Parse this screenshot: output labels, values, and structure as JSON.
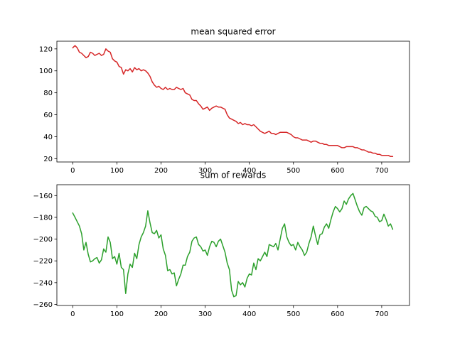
{
  "chart_data": [
    {
      "type": "line",
      "title": "mean squared error",
      "xlabel": "",
      "ylabel": "",
      "xlim": [
        -36,
        763
      ],
      "ylim": [
        17,
        127
      ],
      "xticks": [
        0,
        100,
        200,
        300,
        400,
        500,
        600,
        700
      ],
      "yticks": [
        20,
        40,
        60,
        80,
        100,
        120
      ],
      "grid": false,
      "color": "#d62728",
      "series": [
        {
          "x": [
            0,
            5,
            10,
            15,
            20,
            25,
            30,
            35,
            40,
            45,
            50,
            55,
            60,
            65,
            70,
            75,
            80,
            85,
            90,
            95,
            100,
            105,
            110,
            115,
            120,
            125,
            130,
            135,
            140,
            145,
            150,
            155,
            160,
            165,
            170,
            175,
            180,
            185,
            190,
            195,
            200,
            205,
            210,
            215,
            220,
            225,
            230,
            235,
            240,
            245,
            250,
            255,
            260,
            265,
            270,
            275,
            280,
            285,
            290,
            295,
            300,
            305,
            310,
            315,
            320,
            325,
            330,
            335,
            340,
            345,
            350,
            355,
            360,
            365,
            370,
            375,
            380,
            385,
            390,
            395,
            400,
            405,
            410,
            415,
            420,
            425,
            430,
            435,
            440,
            445,
            450,
            455,
            460,
            465,
            470,
            475,
            480,
            485,
            490,
            495,
            500,
            505,
            510,
            515,
            520,
            525,
            530,
            535,
            540,
            545,
            550,
            555,
            560,
            565,
            570,
            575,
            580,
            585,
            590,
            595,
            600,
            605,
            610,
            615,
            620,
            625,
            630,
            635,
            640,
            645,
            650,
            655,
            660,
            665,
            670,
            675,
            680,
            685,
            690,
            695,
            700,
            705,
            710,
            715,
            720,
            725
          ],
          "y": [
            121,
            123,
            121,
            117,
            116,
            114,
            112,
            113,
            117,
            116,
            114,
            115,
            116,
            114,
            115,
            120,
            118,
            117,
            111,
            109,
            108,
            104,
            103,
            97,
            101,
            100,
            102,
            99,
            103,
            101,
            102,
            100,
            101,
            100,
            98,
            95,
            90,
            87,
            85,
            86,
            84,
            83,
            85,
            83,
            84,
            83,
            83,
            85,
            84,
            83,
            84,
            80,
            79,
            78,
            74,
            73,
            73,
            70,
            68,
            65,
            66,
            67,
            64,
            66,
            67,
            68,
            67,
            67,
            66,
            65,
            60,
            57,
            56,
            55,
            54,
            52,
            53,
            51,
            52,
            51,
            51,
            50,
            51,
            49,
            47,
            45,
            44,
            43,
            44,
            45,
            43,
            43,
            42,
            43,
            44,
            44,
            44,
            44,
            43,
            42,
            40,
            39,
            39,
            38,
            37,
            37,
            37,
            36,
            35,
            36,
            36,
            35,
            34,
            34,
            33,
            33,
            32,
            32,
            32,
            32,
            32,
            31,
            30,
            30,
            31,
            31,
            31,
            31,
            30,
            30,
            29,
            28,
            28,
            27,
            26,
            26,
            25,
            25,
            24,
            24,
            23,
            23,
            23,
            23,
            22,
            22
          ]
        }
      ]
    },
    {
      "type": "line",
      "title": "sum of rewards",
      "xlabel": "",
      "ylabel": "",
      "xlim": [
        -36,
        763
      ],
      "ylim": [
        -261,
        -150
      ],
      "xticks": [
        0,
        100,
        200,
        300,
        400,
        500,
        600,
        700
      ],
      "yticks": [
        -260,
        -240,
        -220,
        -200,
        -180,
        -160
      ],
      "grid": false,
      "color": "#2ca02c",
      "series": [
        {
          "x": [
            0,
            5,
            10,
            15,
            20,
            25,
            30,
            35,
            40,
            45,
            50,
            55,
            60,
            65,
            70,
            75,
            80,
            85,
            90,
            95,
            100,
            105,
            110,
            115,
            120,
            125,
            130,
            135,
            140,
            145,
            150,
            155,
            160,
            165,
            170,
            175,
            180,
            185,
            190,
            195,
            200,
            205,
            210,
            215,
            220,
            225,
            230,
            235,
            240,
            245,
            250,
            255,
            260,
            265,
            270,
            275,
            280,
            285,
            290,
            295,
            300,
            305,
            310,
            315,
            320,
            325,
            330,
            335,
            340,
            345,
            350,
            355,
            360,
            365,
            370,
            375,
            380,
            385,
            390,
            395,
            400,
            405,
            410,
            415,
            420,
            425,
            430,
            435,
            440,
            445,
            450,
            455,
            460,
            465,
            470,
            475,
            480,
            485,
            490,
            495,
            500,
            505,
            510,
            515,
            520,
            525,
            530,
            535,
            540,
            545,
            550,
            555,
            560,
            565,
            570,
            575,
            580,
            585,
            590,
            595,
            600,
            605,
            610,
            615,
            620,
            625,
            630,
            635,
            640,
            645,
            650,
            655,
            660,
            665,
            670,
            675,
            680,
            685,
            690,
            695,
            700,
            705,
            710,
            715,
            720,
            725
          ],
          "y": [
            -176,
            -180,
            -184,
            -188,
            -195,
            -210,
            -203,
            -214,
            -221,
            -220,
            -218,
            -217,
            -222,
            -219,
            -209,
            -212,
            -198,
            -203,
            -218,
            -216,
            -223,
            -213,
            -226,
            -228,
            -250,
            -232,
            -223,
            -226,
            -213,
            -218,
            -205,
            -198,
            -194,
            -188,
            -174,
            -185,
            -194,
            -195,
            -192,
            -199,
            -196,
            -209,
            -215,
            -229,
            -228,
            -232,
            -231,
            -243,
            -237,
            -232,
            -224,
            -224,
            -216,
            -212,
            -202,
            -199,
            -198,
            -205,
            -207,
            -211,
            -210,
            -215,
            -207,
            -202,
            -203,
            -207,
            -202,
            -200,
            -206,
            -212,
            -222,
            -228,
            -247,
            -253,
            -252,
            -239,
            -242,
            -240,
            -244,
            -236,
            -232,
            -233,
            -222,
            -228,
            -218,
            -220,
            -216,
            -212,
            -216,
            -205,
            -206,
            -207,
            -204,
            -210,
            -200,
            -190,
            -186,
            -198,
            -203,
            -206,
            -205,
            -210,
            -203,
            -207,
            -210,
            -215,
            -212,
            -204,
            -198,
            -188,
            -197,
            -205,
            -196,
            -195,
            -189,
            -186,
            -190,
            -182,
            -175,
            -170,
            -172,
            -175,
            -172,
            -165,
            -168,
            -163,
            -160,
            -158,
            -164,
            -170,
            -175,
            -178,
            -171,
            -170,
            -172,
            -174,
            -175,
            -179,
            -180,
            -184,
            -183,
            -177,
            -182,
            -188,
            -186,
            -191
          ]
        }
      ]
    }
  ]
}
